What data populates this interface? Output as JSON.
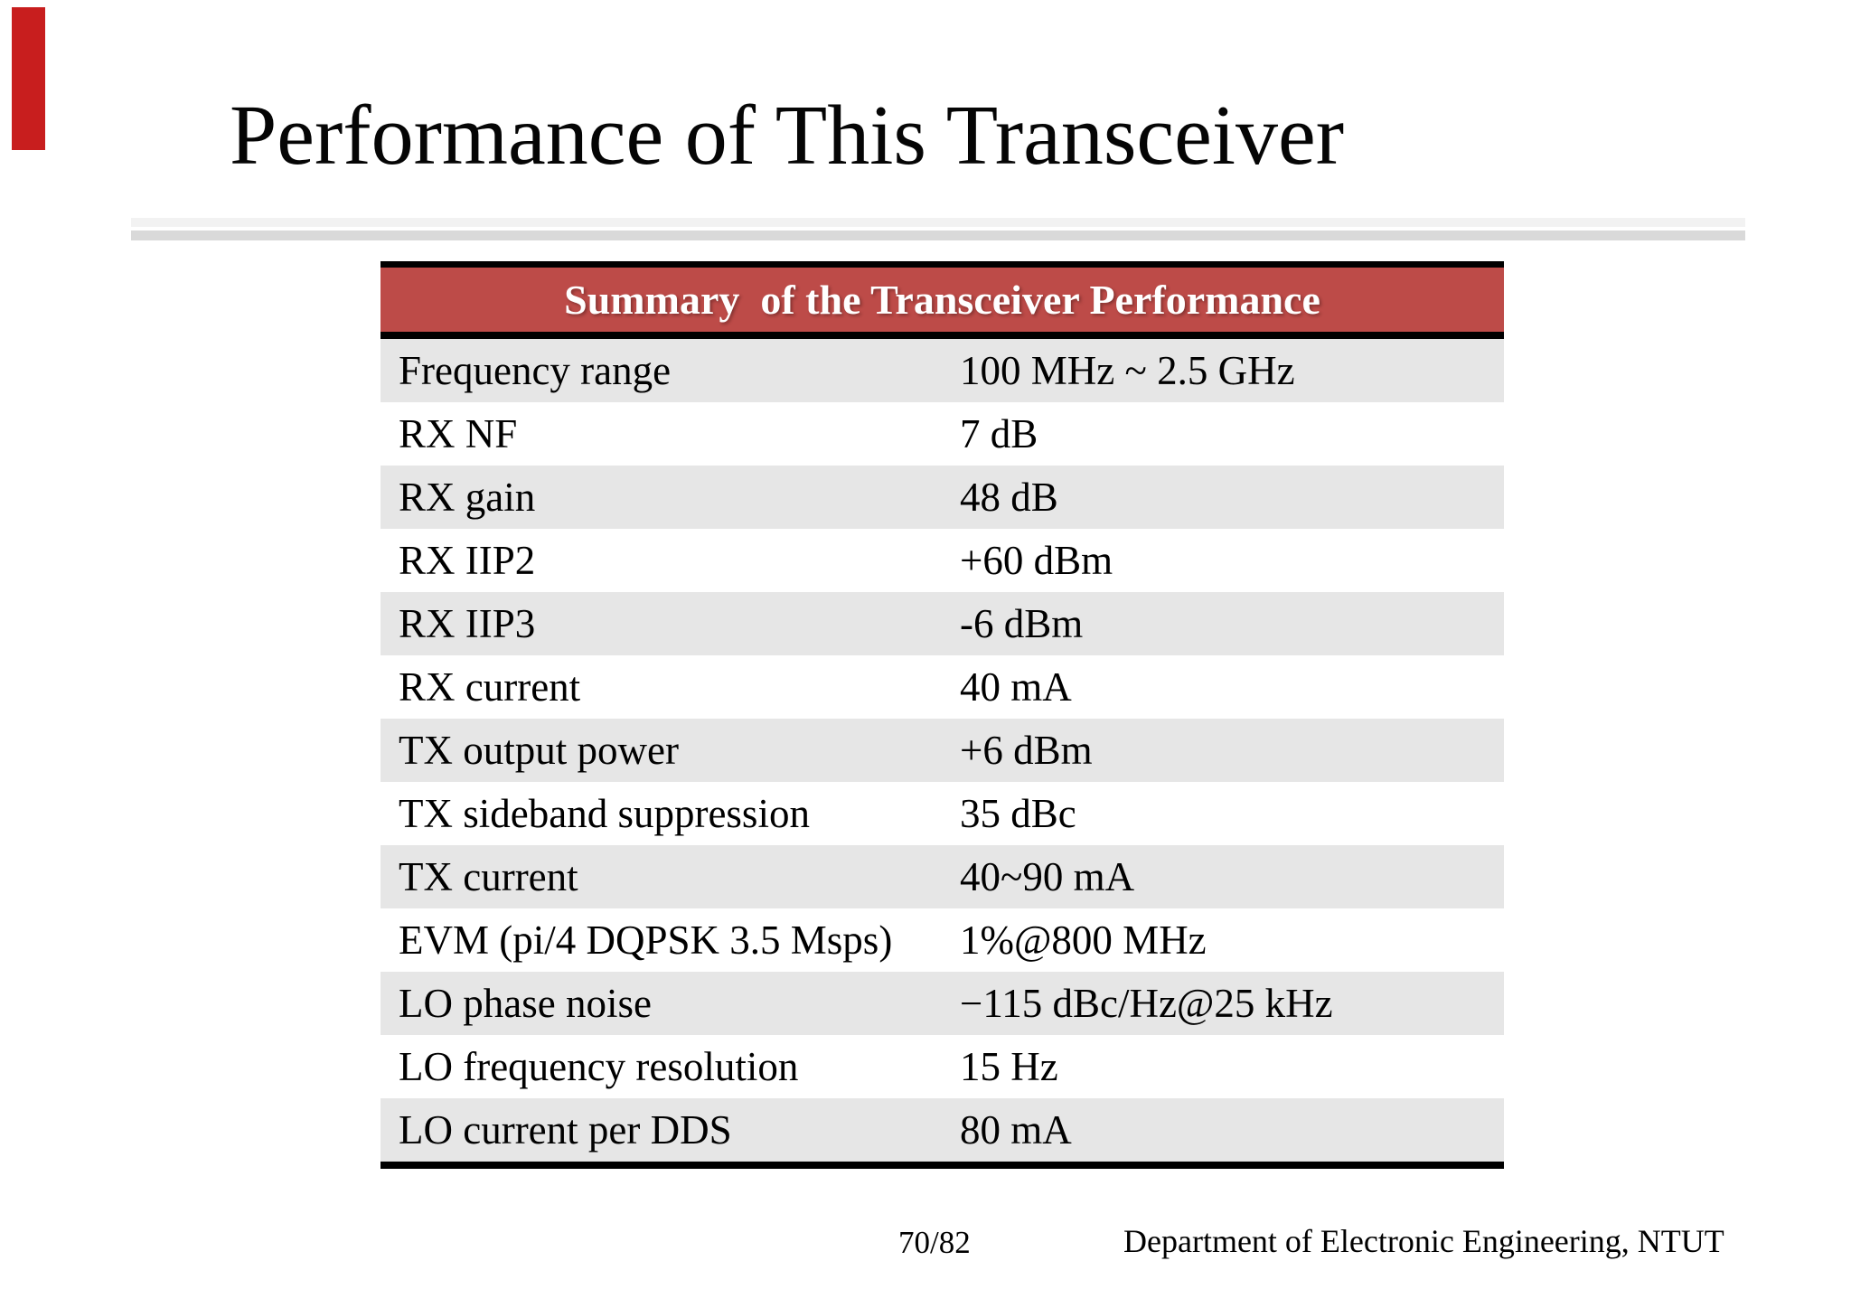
{
  "slide": {
    "title": "Performance of This Transceiver",
    "page_number": "70/82",
    "footer": "Department of Electronic Engineering, NTUT"
  },
  "accent_colors": {
    "corner_bar": "#c81e1e",
    "table_header_bg": "#bd4b48",
    "row_stripe": "#e6e6e6",
    "divider_light": "#f2f2f2",
    "divider_dark": "#d9d9d9"
  },
  "table": {
    "header": "Summary  of the Transceiver Performance",
    "rows": [
      {
        "label": "Frequency range",
        "value": "100 MHz ~ 2.5 GHz"
      },
      {
        "label": "RX NF",
        "value": "7 dB"
      },
      {
        "label": "RX gain",
        "value": "48 dB"
      },
      {
        "label": "RX IIP2",
        "value": "+60 dBm"
      },
      {
        "label": "RX IIP3",
        "value": "-6 dBm"
      },
      {
        "label": "RX current",
        "value": "40 mA"
      },
      {
        "label": "TX output power",
        "value": "+6 dBm"
      },
      {
        "label": "TX sideband suppression",
        "value": "35 dBc"
      },
      {
        "label": "TX current",
        "value": "40~90 mA"
      },
      {
        "label": "EVM (pi/4 DQPSK 3.5 Msps)",
        "value": "1%@800 MHz"
      },
      {
        "label": "LO phase noise",
        "value": "−115 dBc/Hz@25 kHz"
      },
      {
        "label": "LO frequency resolution",
        "value": "15 Hz"
      },
      {
        "label": "LO current per DDS",
        "value": "80 mA"
      }
    ]
  }
}
